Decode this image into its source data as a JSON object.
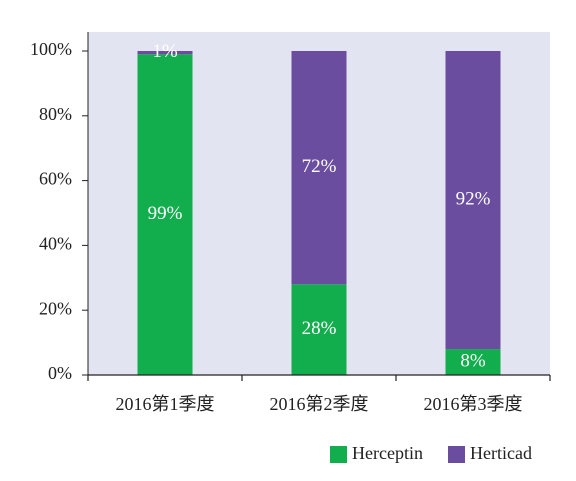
{
  "chart_data": {
    "type": "bar",
    "stacked": true,
    "percent": true,
    "categories": [
      "2016第1季度",
      "2016第2季度",
      "2016第3季度"
    ],
    "series": [
      {
        "name": "Herceptin",
        "color": "#12ad4c",
        "values": [
          99,
          28,
          8
        ],
        "labels": [
          "99%",
          "28%",
          "8%"
        ]
      },
      {
        "name": "Herticad",
        "color": "#6b4da0",
        "values": [
          1,
          72,
          92
        ],
        "labels": [
          "1%",
          "72%",
          "92%"
        ]
      }
    ],
    "y_ticks": [
      "0%",
      "20%",
      "40%",
      "60%",
      "80%",
      "100%"
    ],
    "ylim": [
      0,
      100
    ],
    "grid": false,
    "plot_background": "#e3e4f1",
    "legend_position": "bottom-right"
  }
}
